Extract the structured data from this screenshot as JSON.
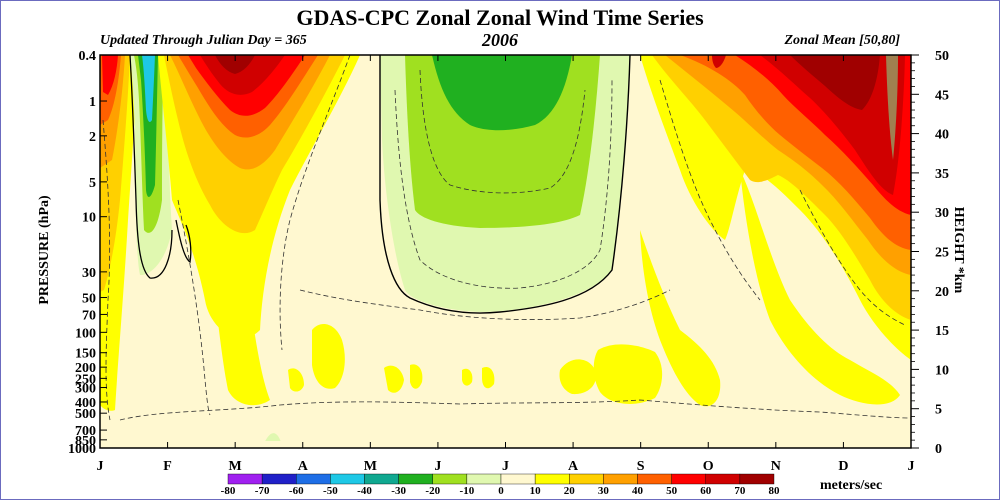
{
  "chart_data": {
    "type": "heatmap",
    "title": "GDAS-CPC Zonal Zonal Wind Time Series",
    "subtitle_left": "Updated Through Julian Day = 365",
    "subtitle_center": "2006",
    "subtitle_right": "Zonal Mean [50,80]",
    "ylabel_left": "PRESSURE (hPa)",
    "ylabel_right": "HEIGHT *km",
    "units_label": "meters/sec",
    "x_ticks": [
      "J",
      "F",
      "M",
      "A",
      "M",
      "J",
      "J",
      "A",
      "S",
      "O",
      "N",
      "D",
      "J"
    ],
    "pressure_ticks": [
      "0.4",
      "1",
      "2",
      "5",
      "10",
      "30",
      "50",
      "70",
      "100",
      "150",
      "200",
      "250",
      "300",
      "400",
      "500",
      "700",
      "850",
      "1000"
    ],
    "pressure_values": [
      0.4,
      1,
      2,
      5,
      10,
      30,
      50,
      70,
      100,
      150,
      200,
      250,
      300,
      400,
      500,
      700,
      850,
      1000
    ],
    "height_ticks": [
      "0",
      "5",
      "10",
      "15",
      "20",
      "25",
      "30",
      "35",
      "40",
      "45",
      "50"
    ],
    "height_values": [
      0,
      5,
      10,
      15,
      20,
      25,
      30,
      35,
      40,
      45,
      50
    ],
    "colorbar_levels": [
      "-80",
      "-70",
      "-60",
      "-50",
      "-40",
      "-30",
      "-20",
      "-10",
      "0",
      "10",
      "20",
      "30",
      "40",
      "50",
      "60",
      "70",
      "80"
    ],
    "colorbar_colors": [
      "#a020f0",
      "#2020c8",
      "#1e6ee6",
      "#1ec8e6",
      "#10a890",
      "#20b020",
      "#a0e020",
      "#e0f8b0",
      "#fff8d0",
      "#ffff00",
      "#ffd000",
      "#ffa000",
      "#ff6000",
      "#ff0000",
      "#d00000",
      "#a00000",
      "#a08050"
    ],
    "field_description_levels_ms": {
      "jan_upper_peak": 70,
      "feb_upper_min": -40,
      "mar_upper_peak": 60,
      "jun_jul_upper_min": -30,
      "oct_upper_peak": 40,
      "dec_upper_peak": 70,
      "troposphere_typical": 10
    }
  }
}
